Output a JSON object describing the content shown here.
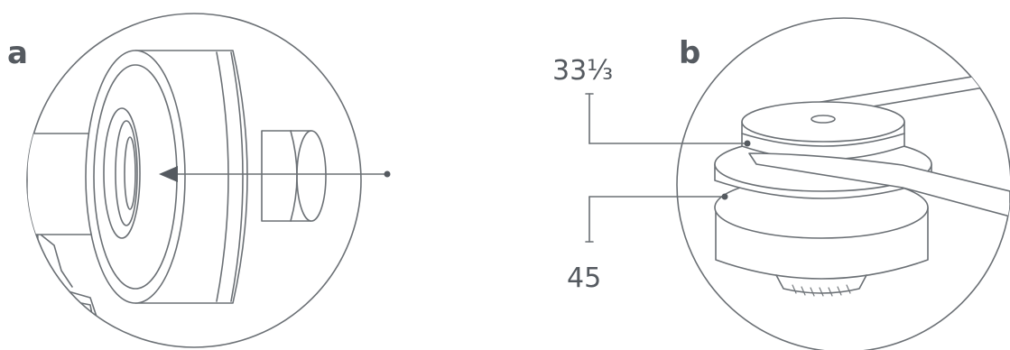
{
  "panel_a": {
    "letter": "a"
  },
  "panel_b": {
    "letter": "b",
    "upper_step_label": "33⅓",
    "lower_step_label": "45"
  },
  "colors": {
    "line": "#6b7075",
    "text": "#555a60",
    "background": "#ffffff"
  }
}
